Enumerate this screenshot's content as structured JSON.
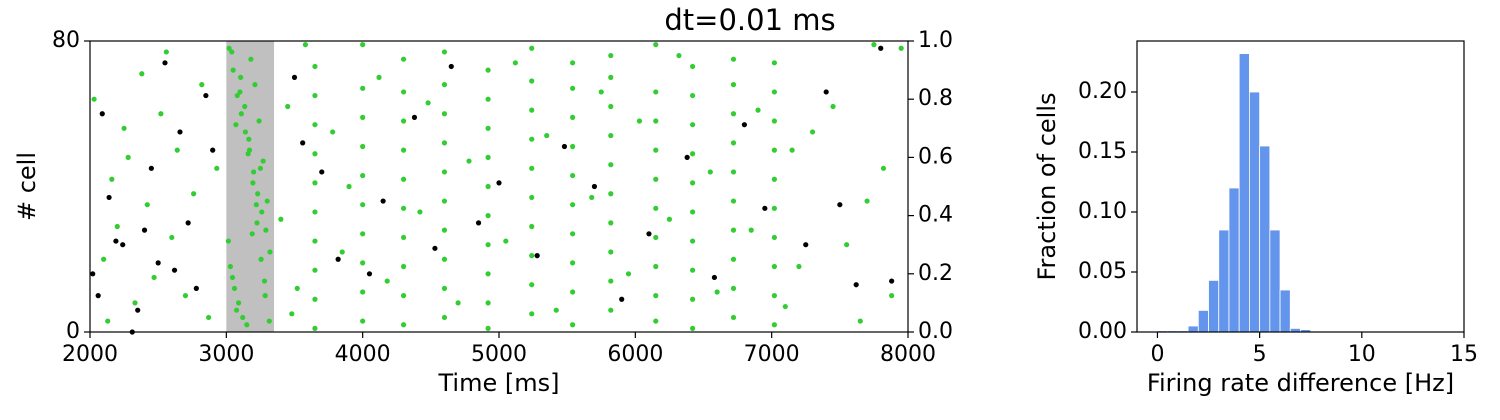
{
  "chart_data": [
    {
      "type": "scatter",
      "title": "dt=0.01 ms",
      "xlabel": "Time [ms]",
      "ylabel": "# cell",
      "xlim": [
        2000,
        8000
      ],
      "xticks": [
        2000,
        3000,
        4000,
        5000,
        6000,
        7000,
        8000
      ],
      "ylim": [
        0,
        80
      ],
      "yticks": [
        0,
        80
      ],
      "y2lim": [
        0,
        1
      ],
      "y2ticks": [
        {
          "value": 0,
          "label": "0.0"
        },
        {
          "value": 0.2,
          "label": "0.2"
        },
        {
          "value": 0.4,
          "label": "0.4"
        },
        {
          "value": 0.6,
          "label": "0.6"
        },
        {
          "value": 0.8,
          "label": "0.8"
        },
        {
          "value": 1,
          "label": "1.0"
        }
      ],
      "highlight": {
        "x": [
          3000,
          3350
        ],
        "color": "#c0c0c0"
      },
      "series": [
        {
          "color": "#32cd32",
          "x": [
            3020,
            3050,
            3080,
            3110,
            3140,
            3170,
            3200,
            3230,
            3260,
            3290,
            3320,
            3030,
            3060,
            3090,
            3120,
            3150,
            3180,
            3210,
            3240,
            3270,
            3300,
            3015,
            3045,
            3075,
            3105,
            3135,
            3165,
            3195,
            3225,
            3255,
            3285,
            3315,
            3040,
            3100,
            3160,
            3220,
            3280,
            3070,
            3190,
            3250,
            3650,
            3650,
            3650,
            3650,
            3650,
            3650,
            3650,
            3650,
            3650,
            3650,
            4000,
            4000,
            4000,
            4000,
            4000,
            4000,
            4000,
            4000,
            4000,
            4000,
            4300,
            4300,
            4300,
            4300,
            4300,
            4300,
            4300,
            4300,
            4300,
            4300,
            4600,
            4600,
            4600,
            4600,
            4600,
            4600,
            4600,
            4600,
            4600,
            4600,
            4920,
            4920,
            4920,
            4920,
            4920,
            4920,
            4920,
            4920,
            4920,
            4920,
            5240,
            5240,
            5240,
            5240,
            5240,
            5240,
            5240,
            5240,
            5240,
            5240,
            5540,
            5540,
            5540,
            5540,
            5540,
            5540,
            5540,
            5540,
            5540,
            5540,
            5820,
            5820,
            5820,
            5820,
            5820,
            5820,
            5820,
            5820,
            5820,
            5820,
            6150,
            6150,
            6150,
            6150,
            6150,
            6150,
            6150,
            6150,
            6150,
            6150,
            6420,
            6420,
            6420,
            6420,
            6420,
            6420,
            6420,
            6420,
            6420,
            6420,
            6720,
            6720,
            6720,
            6720,
            6720,
            6720,
            6720,
            6720,
            6720,
            6720,
            7020,
            7020,
            7020,
            7020,
            7020,
            7020,
            7020,
            7020,
            7020,
            7020,
            2030,
            2100,
            2130,
            2160,
            2200,
            2250,
            2280,
            2330,
            2380,
            2420,
            2470,
            2520,
            2560,
            2600,
            2640,
            2700,
            2760,
            2820,
            2870,
            2930,
            3400,
            3450,
            3520,
            3580,
            3780,
            3850,
            3900,
            4120,
            4180,
            4420,
            4480,
            4700,
            4780,
            5050,
            5120,
            5350,
            5420,
            5680,
            5750,
            5950,
            6030,
            6250,
            6320,
            6550,
            6600,
            6850,
            6900,
            7100,
            7150,
            7200,
            7300,
            7450,
            7550,
            7650,
            7700,
            7750,
            7820,
            7880,
            7950,
            3480
          ],
          "y": [
            78,
            72,
            65,
            60,
            55,
            50,
            44,
            38,
            33,
            28,
            22,
            18,
            12,
            8,
            4,
            2,
            75,
            68,
            58,
            47,
            36,
            25,
            15,
            6,
            70,
            62,
            53,
            41,
            30,
            20,
            10,
            3,
            77,
            66,
            49,
            35,
            14,
            57,
            27,
            45,
            1,
            9,
            17,
            25,
            33,
            41,
            49,
            57,
            65,
            73,
            3,
            11,
            19,
            27,
            35,
            43,
            51,
            59,
            67,
            79,
            2,
            10,
            18,
            26,
            34,
            42,
            50,
            58,
            66,
            75,
            4,
            12,
            20,
            28,
            36,
            44,
            52,
            60,
            68,
            77,
            1,
            8,
            16,
            24,
            32,
            40,
            48,
            56,
            64,
            72,
            5,
            13,
            21,
            29,
            37,
            45,
            53,
            61,
            69,
            78,
            2,
            11,
            19,
            27,
            35,
            43,
            51,
            59,
            67,
            74,
            6,
            14,
            22,
            30,
            38,
            46,
            54,
            62,
            70,
            76,
            3,
            10,
            18,
            26,
            34,
            42,
            50,
            58,
            66,
            79,
            1,
            9,
            17,
            25,
            33,
            41,
            49,
            57,
            65,
            73,
            4,
            12,
            20,
            28,
            36,
            44,
            52,
            60,
            68,
            75,
            2,
            10,
            18,
            26,
            34,
            42,
            50,
            58,
            66,
            74,
            64,
            20,
            3,
            42,
            29,
            56,
            48,
            8,
            71,
            35,
            15,
            60,
            77,
            26,
            50,
            10,
            38,
            68,
            4,
            45,
            31,
            62,
            12,
            79,
            55,
            22,
            40,
            70,
            14,
            33,
            63,
            8,
            47,
            25,
            74,
            54,
            6,
            37,
            66,
            16,
            58,
            31,
            76,
            44,
            11,
            28,
            61,
            7,
            50,
            18,
            55,
            62,
            24,
            3,
            36,
            79,
            45,
            10,
            78,
            5
          ]
        },
        {
          "color": "#000000",
          "x": [
            2020,
            2060,
            2090,
            2140,
            2190,
            2240,
            2310,
            2350,
            2400,
            2450,
            2500,
            2550,
            2620,
            2660,
            2720,
            2780,
            2850,
            2900,
            3500,
            3560,
            3700,
            3820,
            4050,
            4150,
            4380,
            4530,
            4650,
            4850,
            5000,
            5280,
            5480,
            5700,
            5900,
            6100,
            6380,
            6580,
            6800,
            6950,
            7250,
            7620,
            7400,
            7880,
            7500,
            7800
          ],
          "y": [
            16,
            10,
            60,
            37,
            25,
            24,
            0,
            6,
            28,
            45,
            19,
            74,
            17,
            55,
            30,
            12,
            65,
            50,
            70,
            52,
            44,
            20,
            16,
            36,
            59,
            23,
            73,
            30,
            41,
            21,
            51,
            40,
            9,
            27,
            48,
            15,
            57,
            34,
            24,
            13,
            66,
            14,
            35,
            78
          ]
        }
      ]
    },
    {
      "type": "histogram",
      "xlabel": "Firing rate difference [Hz]",
      "ylabel": "Fraction of cells",
      "color": "#6495ed",
      "xlim": [
        -1,
        15
      ],
      "xticks": [
        0,
        5,
        10,
        15
      ],
      "ylim": [
        0,
        0.2425
      ],
      "yticks": [
        {
          "value": 0,
          "label": "0.00"
        },
        {
          "value": 0.05,
          "label": "0.05"
        },
        {
          "value": 0.1,
          "label": "0.10"
        },
        {
          "value": 0.15,
          "label": "0.15"
        },
        {
          "value": 0.2,
          "label": "0.20"
        }
      ],
      "bins": [
        0,
        0.5,
        1,
        1.5,
        2,
        2.5,
        3,
        3.5,
        4,
        4.5,
        5,
        5.5,
        6,
        6.5,
        7,
        7.5
      ],
      "values": [
        0.001,
        0.001,
        0.001,
        0.005,
        0.018,
        0.043,
        0.085,
        0.12,
        0.232,
        0.2,
        0.155,
        0.085,
        0.035,
        0.003,
        0.002
      ]
    }
  ]
}
